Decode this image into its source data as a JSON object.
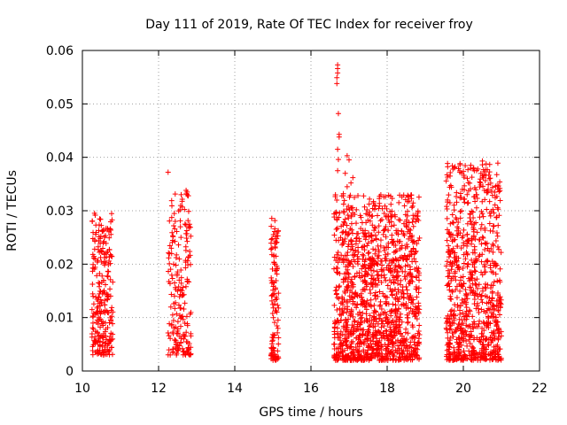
{
  "chart_data": {
    "type": "scatter",
    "title": "Day 111 of 2019, Rate Of TEC Index for receiver froy",
    "xlabel": "GPS time / hours",
    "ylabel": "ROTI / TECUs",
    "xlim": [
      10,
      22
    ],
    "ylim": [
      0,
      0.06
    ],
    "xticks": [
      "10",
      "12",
      "14",
      "16",
      "18",
      "20",
      "22"
    ],
    "yticks": [
      "0",
      "0.01",
      "0.02",
      "0.03",
      "0.04",
      "0.05",
      "0.06"
    ],
    "grid": true,
    "marker": "+",
    "color": "#ff0000",
    "clusters": [
      {
        "x_start": 10.25,
        "x_end": 10.8,
        "y_min": 0.003,
        "y_max": 0.03,
        "count": 260
      },
      {
        "x_start": 12.25,
        "x_end": 12.85,
        "y_min": 0.003,
        "y_max": 0.034,
        "count": 200
      },
      {
        "x_start": 14.95,
        "x_end": 15.15,
        "y_min": 0.002,
        "y_max": 0.029,
        "count": 110
      },
      {
        "x_start": 16.6,
        "x_end": 18.85,
        "y_min": 0.002,
        "y_max": 0.033,
        "count": 1300
      },
      {
        "x_start": 19.55,
        "x_end": 21.0,
        "y_min": 0.002,
        "y_max": 0.039,
        "count": 800
      }
    ],
    "highlights": [
      {
        "x": 12.25,
        "y": 0.0372
      },
      {
        "x": 16.7,
        "y": 0.0573
      },
      {
        "x": 16.7,
        "y": 0.0566
      },
      {
        "x": 16.7,
        "y": 0.0558
      },
      {
        "x": 16.68,
        "y": 0.0549
      },
      {
        "x": 16.68,
        "y": 0.0538
      },
      {
        "x": 16.72,
        "y": 0.0482
      },
      {
        "x": 16.74,
        "y": 0.0443
      },
      {
        "x": 16.74,
        "y": 0.0438
      },
      {
        "x": 16.7,
        "y": 0.0415
      },
      {
        "x": 16.72,
        "y": 0.0396
      },
      {
        "x": 16.7,
        "y": 0.0375
      },
      {
        "x": 16.95,
        "y": 0.0403
      },
      {
        "x": 17.0,
        "y": 0.0395
      },
      {
        "x": 16.9,
        "y": 0.037
      },
      {
        "x": 17.05,
        "y": 0.0352
      },
      {
        "x": 16.95,
        "y": 0.0345
      },
      {
        "x": 17.1,
        "y": 0.0362
      },
      {
        "x": 16.85,
        "y": 0.0332
      },
      {
        "x": 20.5,
        "y": 0.0393
      },
      {
        "x": 20.5,
        "y": 0.0386
      },
      {
        "x": 20.55,
        "y": 0.0373
      },
      {
        "x": 20.5,
        "y": 0.0365
      },
      {
        "x": 20.45,
        "y": 0.0352
      },
      {
        "x": 20.3,
        "y": 0.0343
      },
      {
        "x": 20.35,
        "y": 0.033
      },
      {
        "x": 20.65,
        "y": 0.034
      },
      {
        "x": 12.75,
        "y": 0.0335
      },
      {
        "x": 12.78,
        "y": 0.0328
      }
    ]
  }
}
